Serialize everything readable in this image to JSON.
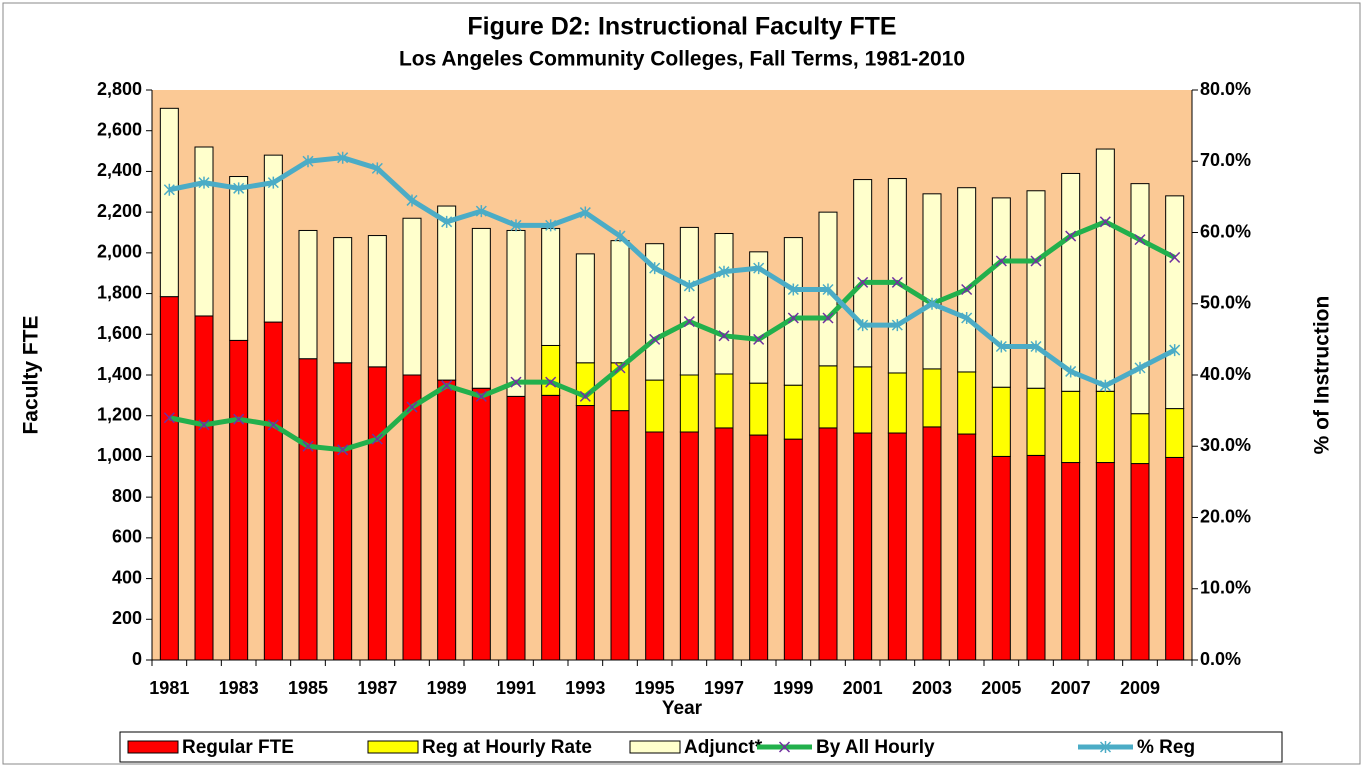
{
  "chart_data": {
    "type": "bar",
    "stacked": true,
    "title": "Figure D2: Instructional Faculty FTE",
    "subtitle": "Los Angeles Community Colleges, Fall Terms, 1981-2010",
    "x_label": "Year",
    "y_label": "Faculty FTE",
    "y2_label": "% of Instruction",
    "categories": [
      "1981",
      null,
      "1983",
      null,
      "1985",
      null,
      "1987",
      null,
      "1989",
      null,
      "1991",
      null,
      "1993",
      null,
      "1995",
      null,
      "1997",
      null,
      "1999",
      null,
      "2001",
      null,
      "2003",
      null,
      "2005",
      null,
      "2007",
      null,
      "2009",
      null
    ],
    "ylim": [
      0,
      2800
    ],
    "yticks": [
      0,
      200,
      400,
      600,
      800,
      {
        "value": 1000,
        "label": "1,000"
      },
      {
        "value": 1200,
        "label": "1,200"
      },
      {
        "value": 1400,
        "label": "1,400"
      },
      {
        "value": 1600,
        "label": "1,600"
      },
      {
        "value": 1800,
        "label": "1,800"
      },
      {
        "value": 2000,
        "label": "2,000"
      },
      {
        "value": 2200,
        "label": "2,200"
      },
      {
        "value": 2400,
        "label": "2,400"
      },
      {
        "value": 2600,
        "label": "2,600"
      },
      {
        "value": 2800,
        "label": "2,800"
      }
    ],
    "y2lim": [
      0,
      80
    ],
    "y2ticks": [
      {
        "value": 0,
        "label": "0.0%"
      },
      {
        "value": 10,
        "label": "10.0%"
      },
      {
        "value": 20,
        "label": "20.0%"
      },
      {
        "value": 30,
        "label": "30.0%"
      },
      {
        "value": 40,
        "label": "40.0%"
      },
      {
        "value": 50,
        "label": "50.0%"
      },
      {
        "value": 60,
        "label": "60.0%"
      },
      {
        "value": 70,
        "label": "70.0%"
      },
      {
        "value": 80,
        "label": "80.0%"
      }
    ],
    "legend": "bottom",
    "series": [
      {
        "name": "Regular FTE",
        "type": "bar",
        "color": "#ff0000",
        "values": [
          1785,
          1690,
          1570,
          1660,
          1480,
          1460,
          1440,
          1400,
          1375,
          1335,
          1295,
          1300,
          1250,
          1225,
          1120,
          1120,
          1140,
          1105,
          1085,
          1140,
          1115,
          1115,
          1145,
          1110,
          1000,
          1005,
          970,
          970,
          965,
          995
        ]
      },
      {
        "name": "Reg at Hourly Rate",
        "type": "bar",
        "color": "#ffff00",
        "values": [
          0,
          0,
          0,
          0,
          0,
          0,
          0,
          0,
          0,
          0,
          0,
          245,
          210,
          235,
          255,
          280,
          265,
          255,
          265,
          305,
          325,
          295,
          285,
          305,
          340,
          330,
          350,
          350,
          245,
          240
        ]
      },
      {
        "name": "Adjunct*",
        "type": "bar",
        "color": "#ffffcc",
        "values": [
          925,
          830,
          805,
          820,
          630,
          615,
          645,
          770,
          855,
          785,
          815,
          575,
          535,
          600,
          670,
          725,
          690,
          645,
          725,
          755,
          920,
          955,
          860,
          905,
          930,
          970,
          1070,
          1190,
          1130,
          1045
        ]
      },
      {
        "name": "By All Hourly",
        "type": "line",
        "axis": "y2",
        "color": "#22b04c",
        "marker_color": "#7030a0",
        "marker": "x",
        "values": [
          34,
          33,
          33.8,
          33,
          30,
          29.5,
          31,
          35.5,
          38.5,
          37,
          39,
          39,
          37,
          41,
          45,
          47.5,
          45.5,
          45,
          48,
          48,
          53,
          53,
          50,
          52,
          56,
          56,
          59.5,
          61.5,
          59,
          56.5
        ]
      },
      {
        "name": "% Reg",
        "type": "line",
        "axis": "y2",
        "color": "#4bacc6",
        "marker_color": "#4bacc6",
        "marker": "star",
        "values": [
          66,
          67,
          66.2,
          67,
          70,
          70.5,
          69,
          64.5,
          61.5,
          63,
          61,
          61,
          62.8,
          59.5,
          55,
          52.5,
          54.5,
          55,
          52,
          52,
          47,
          47,
          50,
          48,
          44,
          44,
          40.5,
          38.5,
          41,
          43.5
        ]
      }
    ]
  }
}
